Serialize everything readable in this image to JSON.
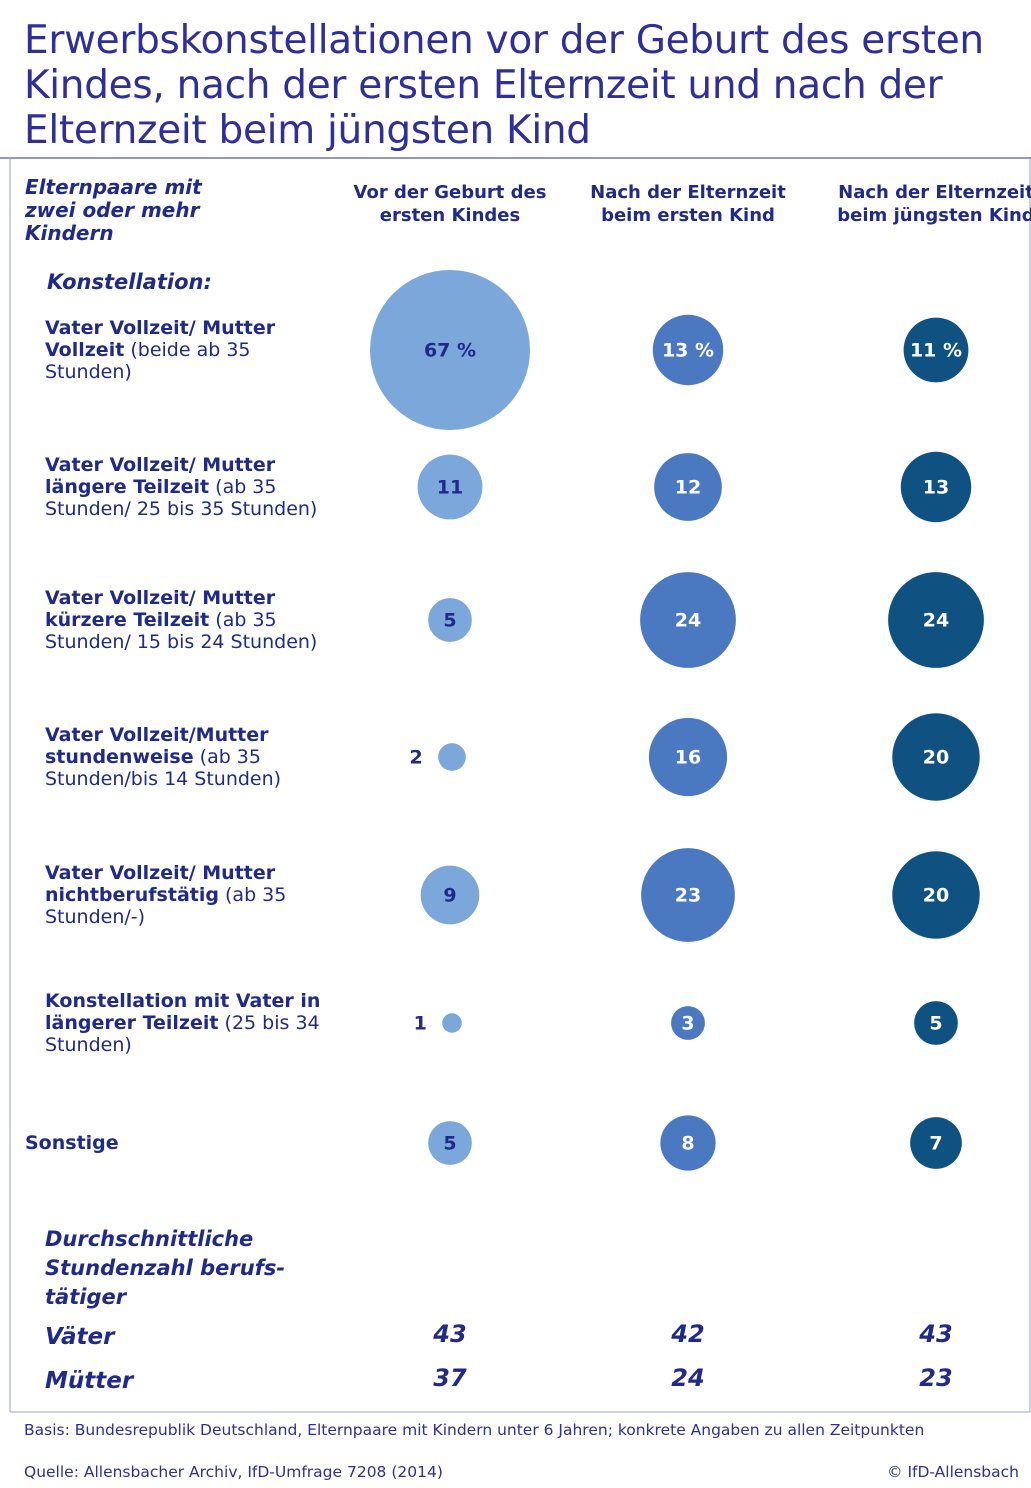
{
  "chart_data": {
    "type": "bubble",
    "title": "Erwerbskonstellationen vor der Geburt des ersten Kindes, nach der ersten Elternzeit und nach der Elternzeit beim jüngsten Kind",
    "row_header": "Elternpaare mit zwei oder mehr Kindern",
    "row_subheader": "Konstellation:",
    "categories": [
      {
        "bold": "Vater Vollzeit/ Mutter Vollzeit",
        "regular": "(beide ab 35 Stunden)"
      },
      {
        "bold": "Vater Vollzeit/ Mutter längere Teilzeit",
        "regular": "(ab 35 Stunden/ 25 bis 35 Stunden)"
      },
      {
        "bold": "Vater Vollzeit/ Mutter kürzere Teilzeit",
        "regular": "(ab 35 Stunden/ 15 bis 24 Stunden)"
      },
      {
        "bold": "Vater Vollzeit/Mutter stundenweise",
        "regular": "(ab 35 Stunden/bis 14 Stunden)"
      },
      {
        "bold": "Vater Vollzeit/ Mutter nichtberufstätig",
        "regular": "(ab 35 Stunden/-)"
      },
      {
        "bold": "Konstellation mit Vater in längerer Teilzeit",
        "regular": "(25 bis 34 Stunden)"
      },
      {
        "bold": "Sonstige",
        "regular": null
      }
    ],
    "series": [
      {
        "name": "Vor der Geburt des ersten Kindes",
        "color": "#7ba7da",
        "label_color": "#1f2a8a",
        "values": [
          67,
          11,
          5,
          2,
          9,
          1,
          5
        ],
        "value_labels": [
          "67 %",
          "11",
          "5",
          "2",
          "9",
          "1",
          "5"
        ]
      },
      {
        "name": "Nach der Elternzeit beim ersten Kind",
        "color": "#4b79c1",
        "label_color": "#ffffff",
        "values": [
          13,
          12,
          24,
          16,
          23,
          3,
          8
        ],
        "value_labels": [
          "13 %",
          "12",
          "24",
          "16",
          "23",
          "3",
          "8"
        ]
      },
      {
        "name": "Nach der Elternzeit beim jüngsten Kind",
        "color": "#0f5282",
        "label_color": "#ffffff",
        "values": [
          11,
          13,
          24,
          20,
          20,
          5,
          7
        ],
        "value_labels": [
          "11 %",
          "13",
          "24",
          "20",
          "20",
          "5",
          "7"
        ]
      }
    ],
    "hours": {
      "title": "Durchschnittliche Stundenzahl berufs­tätiger",
      "rows": [
        {
          "name": "Väter",
          "values": [
            43,
            42,
            43
          ]
        },
        {
          "name": "Mütter",
          "values": [
            37,
            24,
            23
          ]
        }
      ]
    },
    "footnote": "Basis: Bundesrepublik Deutschland, Elternpaare mit Kindern unter 6 Jahren; konkrete Angaben zu allen Zeitpunkten",
    "source": "Quelle: Allensbacher Archiv, IfD-Umfrage 7208 (2014)",
    "copyright": "© IfD-Allensbach"
  }
}
